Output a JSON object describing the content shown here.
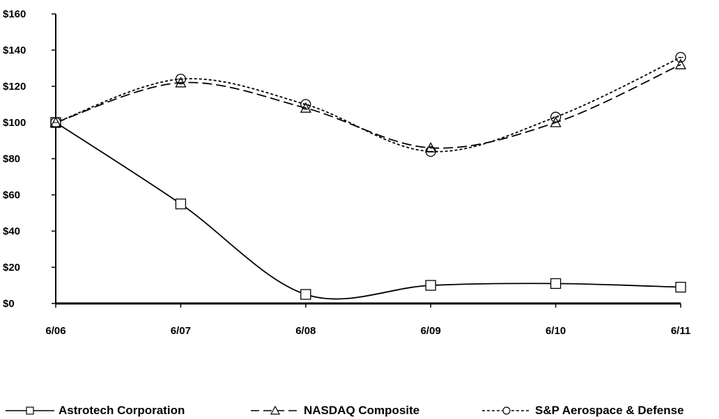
{
  "chart_data": {
    "type": "line",
    "x": [
      "6/06",
      "6/07",
      "6/08",
      "6/09",
      "6/10",
      "6/11"
    ],
    "ylim": [
      0,
      160
    ],
    "yticks": [
      "$0",
      "$20",
      "$40",
      "$60",
      "$80",
      "$100",
      "$120",
      "$140",
      "$160"
    ],
    "grid": false,
    "legend_position": "bottom",
    "series": [
      {
        "name": "Astrotech Corporation",
        "marker": "square",
        "dash": "solid",
        "values": [
          100,
          55,
          5,
          10,
          11,
          9
        ]
      },
      {
        "name": "NASDAQ Composite",
        "marker": "triangle",
        "dash": "long-dash",
        "values": [
          100,
          122,
          108,
          86,
          100,
          132
        ]
      },
      {
        "name": "S&P Aerospace  & Defense",
        "marker": "circle",
        "dash": "short-dash",
        "values": [
          100,
          124,
          110,
          84,
          103,
          136
        ]
      }
    ]
  }
}
